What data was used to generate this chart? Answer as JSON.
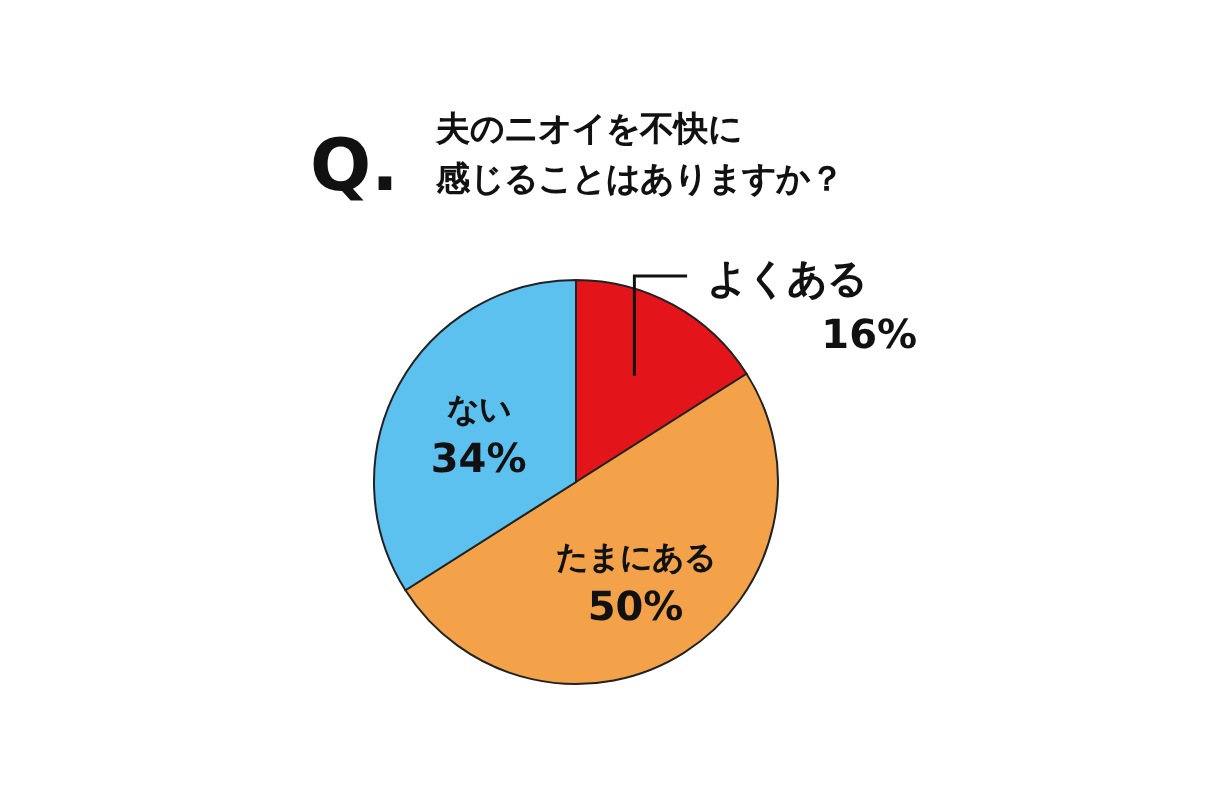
{
  "chart_data": {
    "type": "pie",
    "title": "Q.",
    "subtitle": "夫のニオイを不快に感じることはありますか？",
    "categories": [
      "よくある",
      "たまにある",
      "ない"
    ],
    "values": [
      16,
      50,
      34
    ],
    "value_labels": [
      "16%",
      "50%",
      "34%"
    ],
    "colors": [
      "#e3151b",
      "#f4a24a",
      "#5cc1ef"
    ]
  }
}
